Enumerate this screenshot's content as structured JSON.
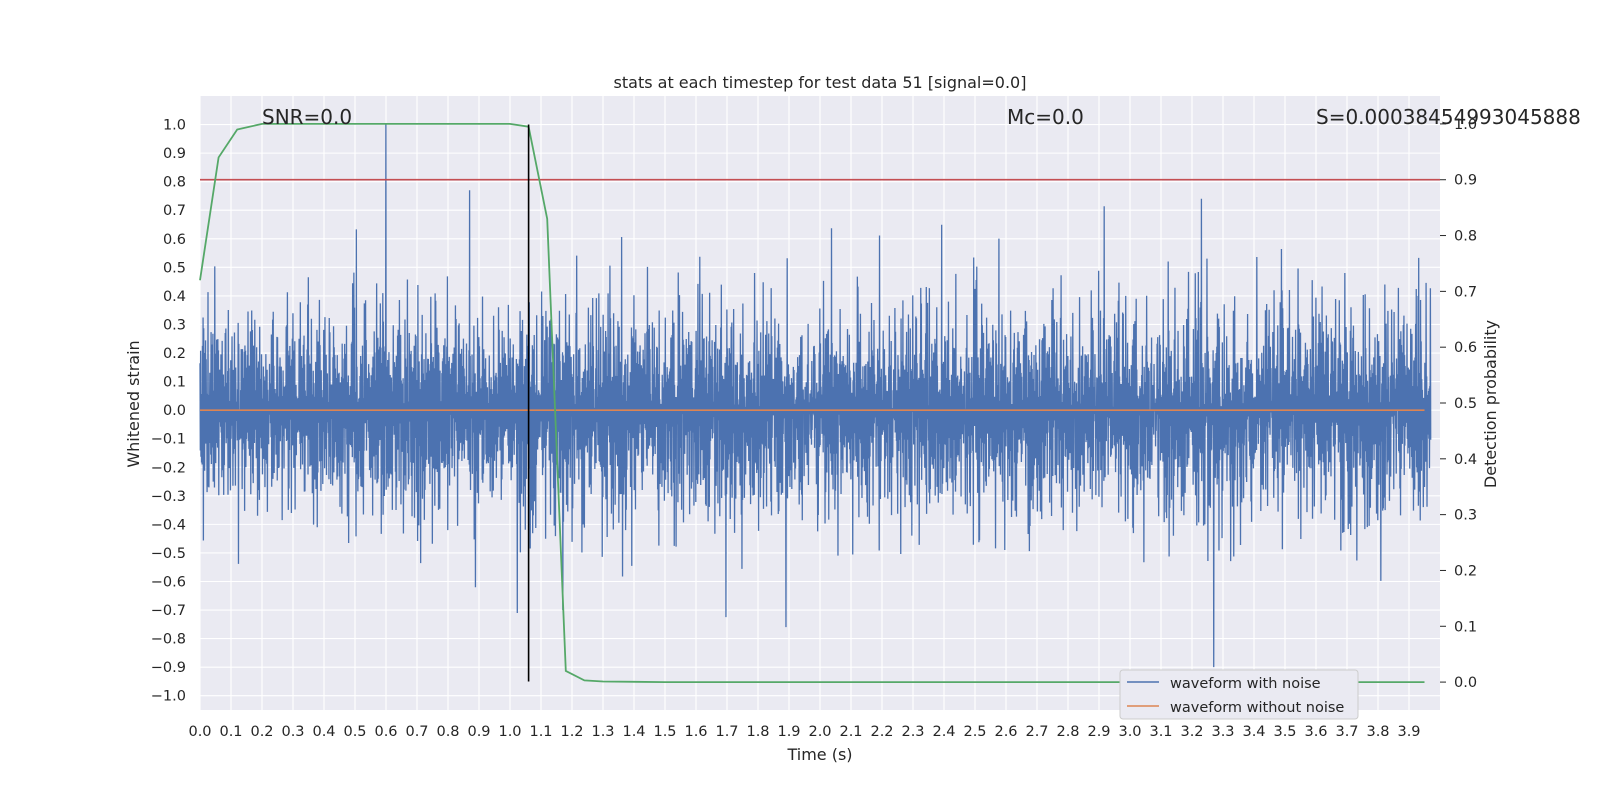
{
  "chart_data": {
    "type": "line",
    "title": "stats at each timestep for test data 51 [signal=0.0]",
    "xlabel": "Time (s)",
    "ylabel": "Whitened strain",
    "y2label": "Detection probability",
    "xlim": [
      0.0,
      4.0
    ],
    "ylim": [
      -1.05,
      1.1
    ],
    "y2lim": [
      -0.05,
      1.05
    ],
    "grid": true,
    "legend_position": "lower-right",
    "x_ticks": [
      0.0,
      0.1,
      0.2,
      0.3,
      0.4,
      0.5,
      0.6,
      0.7,
      0.8,
      0.9,
      1.0,
      1.1,
      1.2,
      1.3,
      1.4,
      1.5,
      1.6,
      1.7,
      1.8,
      1.9,
      2.0,
      2.1,
      2.2,
      2.3,
      2.4,
      2.5,
      2.6,
      2.7,
      2.8,
      2.9,
      3.0,
      3.1,
      3.2,
      3.3,
      3.4,
      3.5,
      3.6,
      3.7,
      3.8,
      3.9
    ],
    "x_tick_labels": [
      "0.0",
      "0.1",
      "0.2",
      "0.3",
      "0.4",
      "0.5",
      "0.6",
      "0.7",
      "0.8",
      "0.9",
      "1.0",
      "1.1",
      "1.2",
      "1.3",
      "1.4",
      "1.5",
      "1.6",
      "1.7",
      "1.8",
      "1.9",
      "2.0",
      "2.1",
      "2.2",
      "2.3",
      "2.4",
      "2.5",
      "2.6",
      "2.7",
      "2.8",
      "2.9",
      "3.0",
      "3.1",
      "3.2",
      "3.3",
      "3.4",
      "3.5",
      "3.6",
      "3.7",
      "3.8",
      "3.9"
    ],
    "y_ticks": [
      1.0,
      0.9,
      0.8,
      0.7,
      0.6,
      0.5,
      0.4,
      0.3,
      0.2,
      0.1,
      0.0,
      -0.1,
      -0.2,
      -0.3,
      -0.4,
      -0.5,
      -0.6,
      -0.7,
      -0.8,
      -0.9,
      -1.0
    ],
    "y_tick_labels": [
      "1.0",
      "0.9",
      "0.8",
      "0.7",
      "0.6",
      "0.5",
      "0.4",
      "0.3",
      "0.2",
      "0.1",
      "0.0",
      "−0.1",
      "−0.2",
      "−0.3",
      "−0.4",
      "−0.5",
      "−0.6",
      "−0.7",
      "−0.8",
      "−0.9",
      "−1.0"
    ],
    "y2_ticks": [
      1.0,
      0.9,
      0.8,
      0.7,
      0.6,
      0.5,
      0.4,
      0.3,
      0.2,
      0.1,
      0.0
    ],
    "y2_tick_labels": [
      "1.0",
      "0.9",
      "0.8",
      "0.7",
      "0.6",
      "0.5",
      "0.4",
      "0.3",
      "0.2",
      "0.1",
      "0.0"
    ],
    "series": [
      {
        "name": "waveform with noise",
        "color": "#4c72b0",
        "axis": "left",
        "amplitude_typical": 0.3,
        "max": 1.0,
        "min": -0.9,
        "peaks": [
          {
            "x": 0.6,
            "y": 1.0
          },
          {
            "x": 0.87,
            "y": 0.77
          },
          {
            "x": 3.27,
            "y": -0.9
          },
          {
            "x": 1.89,
            "y": -0.76
          },
          {
            "x": 3.23,
            "y": 0.74
          },
          {
            "x": 1.17,
            "y": -0.7
          }
        ]
      },
      {
        "name": "waveform without noise",
        "color": "#dd8452",
        "axis": "left",
        "x": [
          0.0,
          3.95
        ],
        "y": [
          0.0,
          0.0
        ]
      },
      {
        "color": "#55a868",
        "axis": "right",
        "x": [
          0.0,
          0.06,
          0.12,
          0.2,
          0.3,
          0.5,
          0.8,
          1.0,
          1.06,
          1.12,
          1.18,
          1.24,
          1.3,
          1.5,
          2.0,
          3.0,
          3.95
        ],
        "y": [
          0.72,
          0.94,
          0.99,
          1.0,
          1.0,
          1.0,
          1.0,
          1.0,
          0.995,
          0.83,
          0.02,
          0.003,
          0.001,
          0.0,
          0.0,
          0.0,
          0.0
        ]
      }
    ],
    "hlines": [
      {
        "axis": "right",
        "y": 0.9,
        "color": "#c44e52"
      }
    ],
    "vlines": [
      {
        "axis": "left",
        "x": 1.06,
        "ymin": -0.95,
        "ymax": 1.0,
        "color": "#000000"
      }
    ],
    "annotations": [
      {
        "id": "snr",
        "x": 0.2,
        "y": 1.05,
        "text": "SNR=0.0"
      },
      {
        "id": "mc",
        "x": 2.6,
        "y": 1.05,
        "text": "Mᴄ=0.0"
      },
      {
        "id": "s",
        "x": 3.6,
        "y": 1.05,
        "text": "S=0.00038454993045888"
      }
    ],
    "legend": [
      "waveform with noise",
      "waveform without noise"
    ]
  }
}
